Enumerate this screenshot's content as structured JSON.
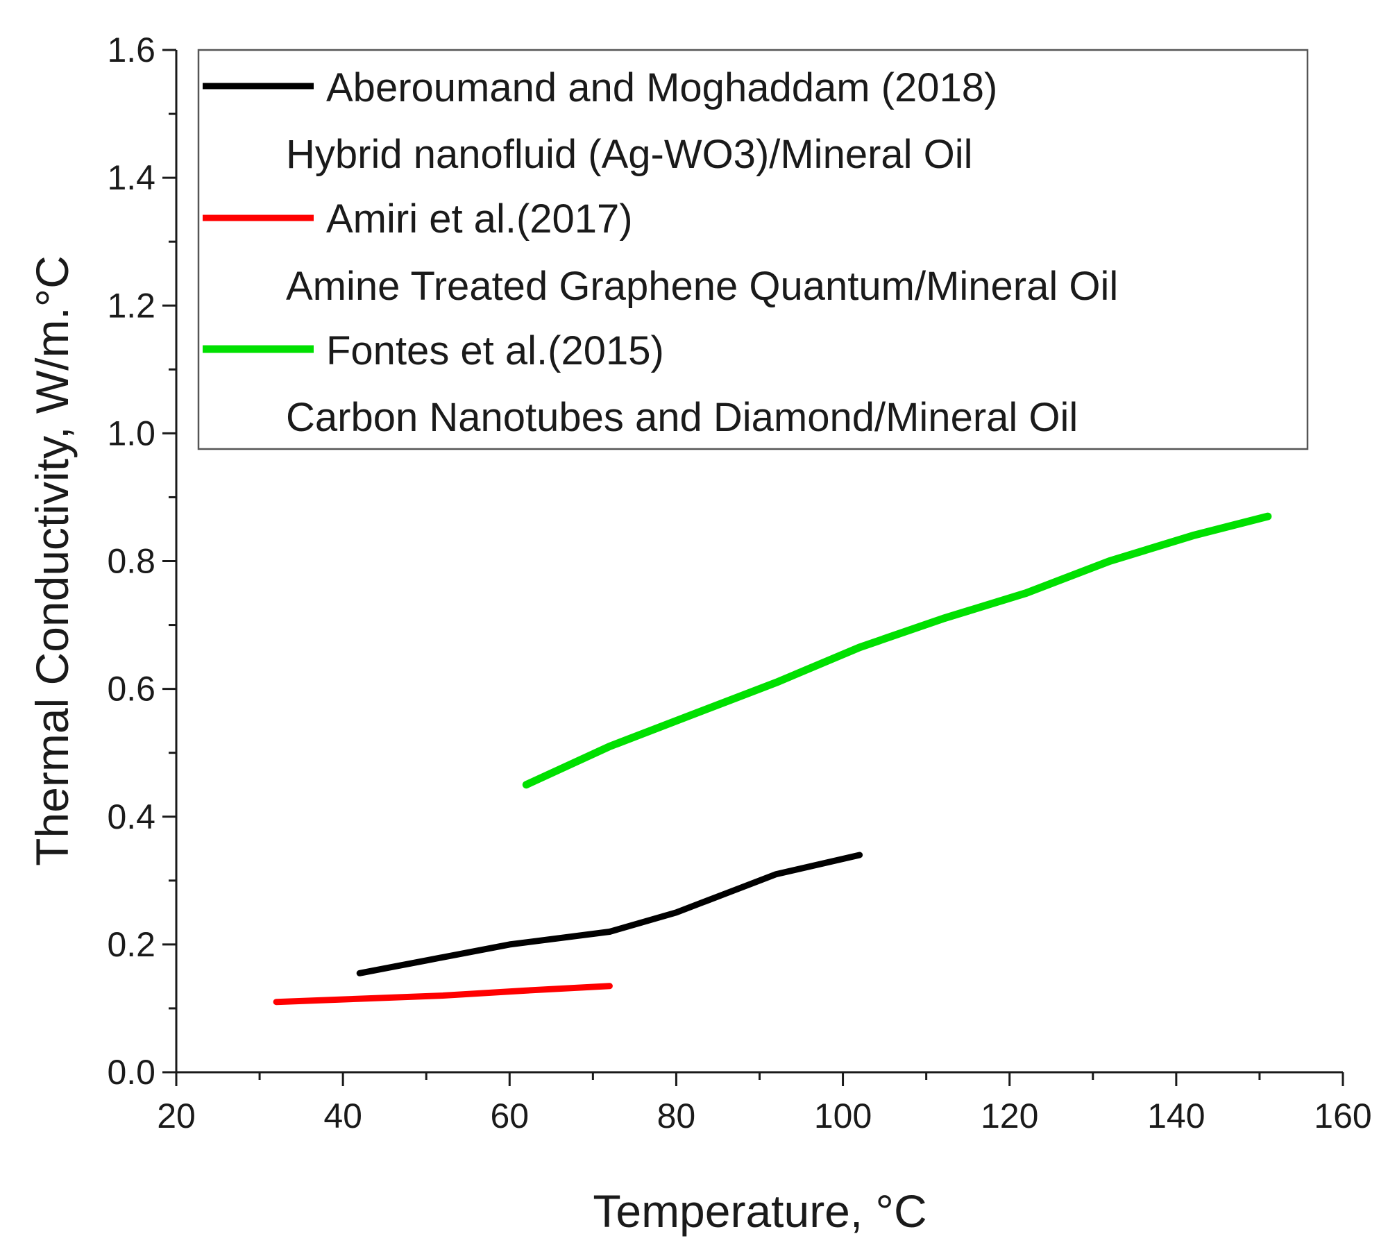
{
  "chart_data": {
    "type": "line",
    "title": "",
    "xlabel": "Temperature, °C",
    "ylabel": "Thermal Conductivity, W/m.°C",
    "xlim": [
      20,
      160
    ],
    "ylim": [
      0.0,
      1.6
    ],
    "x_ticks": [
      20,
      40,
      60,
      80,
      100,
      120,
      140,
      160
    ],
    "x_tick_labels": [
      "20",
      "40",
      "60",
      "80",
      "100",
      "120",
      "140",
      "160"
    ],
    "y_ticks": [
      0.0,
      0.2,
      0.4,
      0.6,
      0.8,
      1.0,
      1.2,
      1.4,
      1.6
    ],
    "y_tick_labels": [
      "0.0",
      "0.2",
      "0.4",
      "0.6",
      "0.8",
      "1.0",
      "1.2",
      "1.4",
      "1.6"
    ],
    "grid": false,
    "legend_position": "top",
    "series": [
      {
        "name": "Aberoumand and Moghaddam (2018)",
        "description": "Hybrid nanofluid (Ag-WO3)/Mineral Oil",
        "color": "#000000",
        "x": [
          42,
          50,
          60,
          72,
          80,
          86,
          92,
          102
        ],
        "y": [
          0.155,
          0.175,
          0.2,
          0.22,
          0.25,
          0.28,
          0.31,
          0.34
        ]
      },
      {
        "name": "Amiri et al.(2017)",
        "description": "Amine Treated Graphene Quantum/Mineral Oil",
        "color": "#ff0000",
        "x": [
          32,
          42,
          52,
          62,
          72
        ],
        "y": [
          0.11,
          0.115,
          0.12,
          0.128,
          0.135
        ]
      },
      {
        "name": "Fontes et al.(2015)",
        "description": "Carbon Nanotubes and Diamond/Mineral Oil",
        "color": "#00e000",
        "x": [
          62,
          72,
          82,
          92,
          102,
          112,
          122,
          132,
          142,
          151
        ],
        "y": [
          0.45,
          0.51,
          0.56,
          0.61,
          0.665,
          0.71,
          0.75,
          0.8,
          0.84,
          0.87
        ]
      }
    ]
  }
}
